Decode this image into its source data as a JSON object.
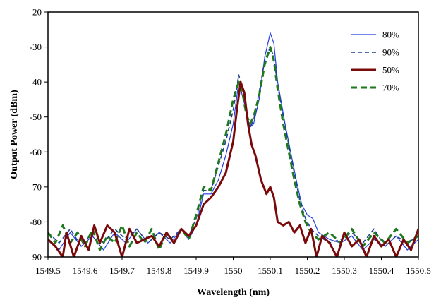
{
  "chart_data": {
    "type": "line",
    "title": "",
    "xlabel": "Wavelength (nm)",
    "ylabel": "Output Power (dBm)",
    "xlim": [
      1549.5,
      1550.5
    ],
    "ylim": [
      -90,
      -20
    ],
    "x_ticks": [
      "1549.5",
      "1549.6",
      "1549.7",
      "1549.8",
      "1549.9",
      "1550",
      "1550.1",
      "1550.2",
      "1550.3",
      "1550.4",
      "1550.5"
    ],
    "y_ticks": [
      "-20",
      "-30",
      "-40",
      "-50",
      "-60",
      "-70",
      "-80",
      "-90"
    ],
    "grid": false,
    "legend_position": "top-right",
    "series": [
      {
        "name": "80%",
        "color": "#1f3fe0",
        "style": "solid",
        "points": [
          [
            1549.5,
            -85
          ],
          [
            1549.53,
            -88
          ],
          [
            1549.56,
            -83
          ],
          [
            1549.59,
            -87
          ],
          [
            1549.62,
            -84
          ],
          [
            1549.65,
            -88
          ],
          [
            1549.68,
            -83
          ],
          [
            1549.71,
            -86
          ],
          [
            1549.74,
            -82
          ],
          [
            1549.77,
            -86
          ],
          [
            1549.8,
            -83
          ],
          [
            1549.83,
            -86
          ],
          [
            1549.86,
            -82
          ],
          [
            1549.88,
            -85
          ],
          [
            1549.9,
            -81
          ],
          [
            1549.92,
            -72
          ],
          [
            1549.94,
            -72
          ],
          [
            1549.96,
            -68
          ],
          [
            1549.98,
            -61
          ],
          [
            1550.0,
            -52
          ],
          [
            1550.015,
            -40
          ],
          [
            1550.025,
            -44
          ],
          [
            1550.035,
            -48
          ],
          [
            1550.045,
            -53
          ],
          [
            1550.055,
            -52
          ],
          [
            1550.07,
            -45
          ],
          [
            1550.085,
            -33
          ],
          [
            1550.1,
            -26
          ],
          [
            1550.11,
            -29
          ],
          [
            1550.12,
            -40
          ],
          [
            1550.13,
            -46
          ],
          [
            1550.14,
            -52
          ],
          [
            1550.155,
            -60
          ],
          [
            1550.17,
            -68
          ],
          [
            1550.185,
            -75
          ],
          [
            1550.2,
            -78
          ],
          [
            1550.215,
            -79
          ],
          [
            1550.23,
            -83
          ],
          [
            1550.26,
            -85
          ],
          [
            1550.29,
            -86
          ],
          [
            1550.32,
            -84
          ],
          [
            1550.35,
            -88
          ],
          [
            1550.38,
            -85
          ],
          [
            1550.41,
            -87
          ],
          [
            1550.44,
            -84
          ],
          [
            1550.47,
            -88
          ],
          [
            1550.5,
            -85
          ]
        ]
      },
      {
        "name": "90%",
        "color": "#1f3f8f",
        "style": "dashed",
        "points": [
          [
            1549.5,
            -83
          ],
          [
            1549.53,
            -86
          ],
          [
            1549.56,
            -82
          ],
          [
            1549.59,
            -87
          ],
          [
            1549.62,
            -83
          ],
          [
            1549.65,
            -86
          ],
          [
            1549.68,
            -82
          ],
          [
            1549.71,
            -85
          ],
          [
            1549.74,
            -82
          ],
          [
            1549.77,
            -86
          ],
          [
            1549.8,
            -83
          ],
          [
            1549.83,
            -85
          ],
          [
            1549.86,
            -82
          ],
          [
            1549.88,
            -84
          ],
          [
            1549.9,
            -79
          ],
          [
            1549.92,
            -71
          ],
          [
            1549.94,
            -71
          ],
          [
            1549.96,
            -64
          ],
          [
            1549.98,
            -57
          ],
          [
            1550.0,
            -48
          ],
          [
            1550.015,
            -38
          ],
          [
            1550.025,
            -42
          ],
          [
            1550.035,
            -48
          ],
          [
            1550.045,
            -53
          ],
          [
            1550.055,
            -51
          ],
          [
            1550.07,
            -43
          ],
          [
            1550.085,
            -34
          ],
          [
            1550.1,
            -30
          ],
          [
            1550.11,
            -33
          ],
          [
            1550.12,
            -41
          ],
          [
            1550.135,
            -50
          ],
          [
            1550.15,
            -58
          ],
          [
            1550.165,
            -66
          ],
          [
            1550.18,
            -74
          ],
          [
            1550.195,
            -79
          ],
          [
            1550.21,
            -82
          ],
          [
            1550.23,
            -84
          ],
          [
            1550.26,
            -86
          ],
          [
            1550.29,
            -85
          ],
          [
            1550.32,
            -83
          ],
          [
            1550.35,
            -86
          ],
          [
            1550.38,
            -82
          ],
          [
            1550.41,
            -87
          ],
          [
            1550.44,
            -84
          ],
          [
            1550.47,
            -86
          ],
          [
            1550.5,
            -84
          ]
        ]
      },
      {
        "name": "50%",
        "color": "#7a0a0a",
        "style": "solid-thick",
        "points": [
          [
            1549.5,
            -85
          ],
          [
            1549.52,
            -87
          ],
          [
            1549.54,
            -90
          ],
          [
            1549.55,
            -83
          ],
          [
            1549.57,
            -90
          ],
          [
            1549.59,
            -84
          ],
          [
            1549.61,
            -88
          ],
          [
            1549.625,
            -81
          ],
          [
            1549.64,
            -86
          ],
          [
            1549.66,
            -81
          ],
          [
            1549.68,
            -83
          ],
          [
            1549.7,
            -90
          ],
          [
            1549.72,
            -82
          ],
          [
            1549.74,
            -86
          ],
          [
            1549.76,
            -85
          ],
          [
            1549.78,
            -84
          ],
          [
            1549.8,
            -87
          ],
          [
            1549.82,
            -83
          ],
          [
            1549.84,
            -86
          ],
          [
            1549.86,
            -82
          ],
          [
            1549.88,
            -84
          ],
          [
            1549.9,
            -81
          ],
          [
            1549.92,
            -75
          ],
          [
            1549.94,
            -73
          ],
          [
            1549.96,
            -70
          ],
          [
            1549.98,
            -66
          ],
          [
            1550.0,
            -57
          ],
          [
            1550.01,
            -48
          ],
          [
            1550.02,
            -40
          ],
          [
            1550.03,
            -43
          ],
          [
            1550.04,
            -52
          ],
          [
            1550.05,
            -58
          ],
          [
            1550.06,
            -61
          ],
          [
            1550.075,
            -68
          ],
          [
            1550.09,
            -72
          ],
          [
            1550.1,
            -70
          ],
          [
            1550.11,
            -73
          ],
          [
            1550.12,
            -80
          ],
          [
            1550.135,
            -81
          ],
          [
            1550.15,
            -80
          ],
          [
            1550.165,
            -83
          ],
          [
            1550.18,
            -81
          ],
          [
            1550.195,
            -86
          ],
          [
            1550.21,
            -82
          ],
          [
            1550.225,
            -90
          ],
          [
            1550.24,
            -84
          ],
          [
            1550.26,
            -86
          ],
          [
            1550.28,
            -90
          ],
          [
            1550.3,
            -83
          ],
          [
            1550.32,
            -87
          ],
          [
            1550.34,
            -85
          ],
          [
            1550.36,
            -90
          ],
          [
            1550.38,
            -84
          ],
          [
            1550.4,
            -87
          ],
          [
            1550.42,
            -85
          ],
          [
            1550.44,
            -90
          ],
          [
            1550.46,
            -85
          ],
          [
            1550.48,
            -88
          ],
          [
            1550.5,
            -82
          ]
        ]
      },
      {
        "name": "70%",
        "color": "#1f7a1f",
        "style": "dashed-thick",
        "points": [
          [
            1549.5,
            -83
          ],
          [
            1549.52,
            -86
          ],
          [
            1549.54,
            -81
          ],
          [
            1549.56,
            -86
          ],
          [
            1549.58,
            -83
          ],
          [
            1549.6,
            -87
          ],
          [
            1549.62,
            -82
          ],
          [
            1549.64,
            -88
          ],
          [
            1549.66,
            -84
          ],
          [
            1549.68,
            -86
          ],
          [
            1549.7,
            -81
          ],
          [
            1549.72,
            -87
          ],
          [
            1549.74,
            -83
          ],
          [
            1549.76,
            -86
          ],
          [
            1549.78,
            -82
          ],
          [
            1549.8,
            -88
          ],
          [
            1549.82,
            -83
          ],
          [
            1549.84,
            -86
          ],
          [
            1549.86,
            -82
          ],
          [
            1549.88,
            -85
          ],
          [
            1549.9,
            -78
          ],
          [
            1549.92,
            -70
          ],
          [
            1549.94,
            -71
          ],
          [
            1549.96,
            -63
          ],
          [
            1549.98,
            -55
          ],
          [
            1550.0,
            -45
          ],
          [
            1550.015,
            -40
          ],
          [
            1550.025,
            -43
          ],
          [
            1550.035,
            -49
          ],
          [
            1550.045,
            -52
          ],
          [
            1550.055,
            -50
          ],
          [
            1550.07,
            -44
          ],
          [
            1550.085,
            -35
          ],
          [
            1550.1,
            -30
          ],
          [
            1550.11,
            -34
          ],
          [
            1550.12,
            -42
          ],
          [
            1550.135,
            -52
          ],
          [
            1550.15,
            -60
          ],
          [
            1550.165,
            -68
          ],
          [
            1550.18,
            -75
          ],
          [
            1550.195,
            -80
          ],
          [
            1550.21,
            -83
          ],
          [
            1550.23,
            -85
          ],
          [
            1550.26,
            -83
          ],
          [
            1550.29,
            -86
          ],
          [
            1550.32,
            -82
          ],
          [
            1550.35,
            -87
          ],
          [
            1550.38,
            -83
          ],
          [
            1550.41,
            -86
          ],
          [
            1550.44,
            -82
          ],
          [
            1550.47,
            -86
          ],
          [
            1550.5,
            -84
          ]
        ]
      }
    ]
  }
}
